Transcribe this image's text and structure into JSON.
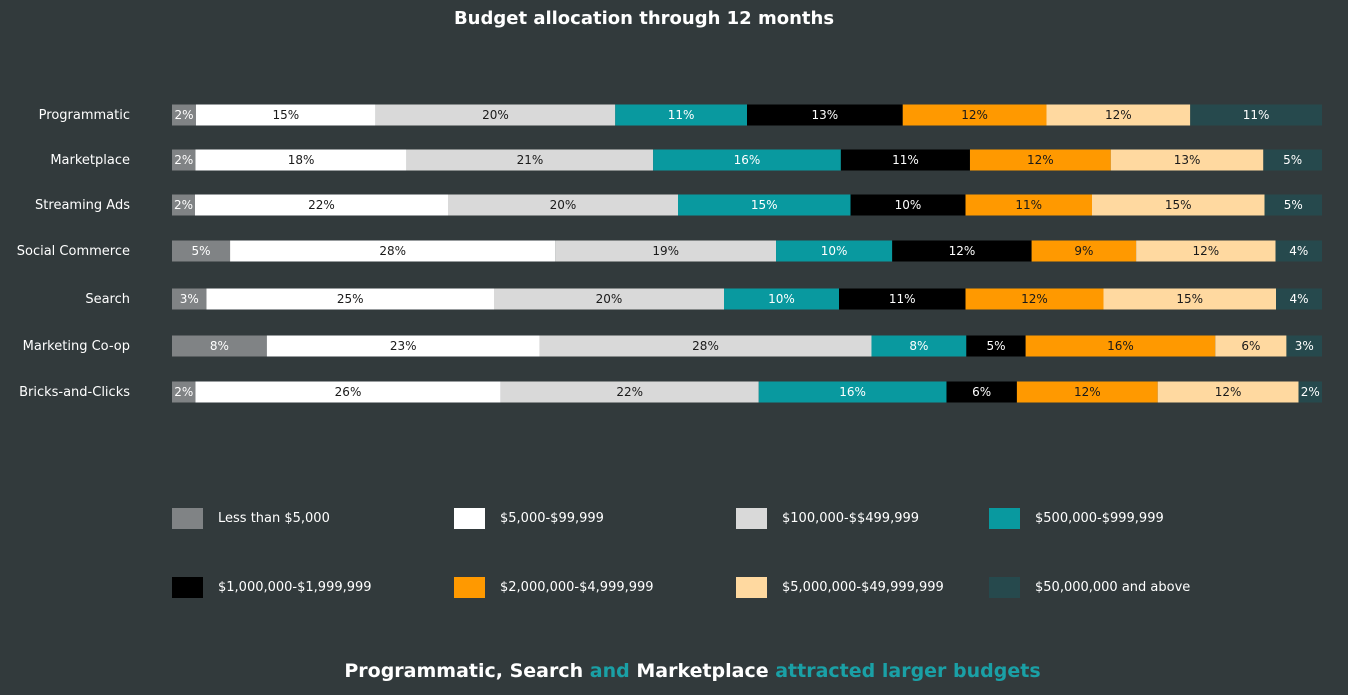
{
  "chart_data": {
    "type": "bar",
    "orientation": "horizontal",
    "stacked": true,
    "title": "Budget allocation through 12 months",
    "unit": "%",
    "categories": [
      "Programmatic",
      "Marketplace",
      "Streaming Ads",
      "Social Commerce",
      "Search",
      "Marketing Co-op",
      "Bricks-and-Clicks"
    ],
    "series": [
      {
        "name": "Less than $5,000",
        "color": "#808385",
        "label_color": "#ffffff",
        "values": [
          2,
          2,
          2,
          5,
          3,
          8,
          2
        ]
      },
      {
        "name": "$5,000-$99,999",
        "color": "#ffffff",
        "label_color": "#1a1a1a",
        "values": [
          15,
          18,
          22,
          28,
          25,
          23,
          26
        ]
      },
      {
        "name": "$100,000-$$499,999",
        "color": "#d9d9d9",
        "label_color": "#1a1a1a",
        "values": [
          20,
          21,
          20,
          19,
          20,
          28,
          22
        ]
      },
      {
        "name": "$500,000-$999,999",
        "color": "#09999f",
        "label_color": "#ffffff",
        "values": [
          11,
          16,
          15,
          10,
          10,
          8,
          16
        ]
      },
      {
        "name": "$1,000,000-$1,999,999",
        "color": "#000000",
        "label_color": "#ffffff",
        "values": [
          13,
          11,
          10,
          12,
          11,
          5,
          6
        ]
      },
      {
        "name": "$2,000,000-$4,999,999",
        "color": "#ff9900",
        "label_color": "#1a1a1a",
        "values": [
          12,
          12,
          11,
          9,
          12,
          16,
          12
        ]
      },
      {
        "name": "$5,000,000-$49,999,999",
        "color": "#ffd9a0",
        "label_color": "#1a1a1a",
        "values": [
          12,
          13,
          15,
          12,
          15,
          6,
          12
        ]
      },
      {
        "name": "$50,000,000 and above",
        "color": "#26494d",
        "label_color": "#ffffff",
        "values": [
          11,
          5,
          5,
          4,
          4,
          3,
          2
        ]
      }
    ],
    "legend_position": "bottom",
    "grid": false
  },
  "footer": {
    "part1": "Programmatic, Search",
    "part2": " and ",
    "part3": "Marketplace",
    "part4": " attracted larger budgets"
  }
}
